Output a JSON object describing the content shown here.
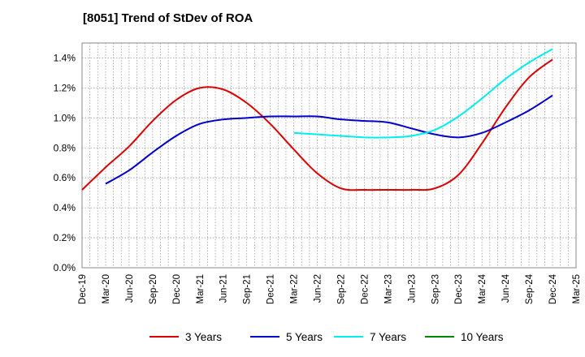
{
  "title": "[8051]  Trend of StDev of ROA",
  "chart_data": {
    "type": "line",
    "title": "[8051]  Trend of StDev of ROA",
    "xlabel": "",
    "ylabel": "",
    "x_ticks": [
      "Dec-19",
      "Mar-20",
      "Jun-20",
      "Sep-20",
      "Dec-20",
      "Mar-21",
      "Jun-21",
      "Sep-21",
      "Dec-21",
      "Mar-22",
      "Jun-22",
      "Sep-22",
      "Dec-22",
      "Mar-23",
      "Jun-23",
      "Sep-23",
      "Dec-23",
      "Mar-24",
      "Jun-24",
      "Sep-24",
      "Dec-24",
      "Mar-25"
    ],
    "y_ticks": [
      "0.0%",
      "0.2%",
      "0.4%",
      "0.6%",
      "0.8%",
      "1.0%",
      "1.2%",
      "1.4%"
    ],
    "ylim": [
      0,
      1.5
    ],
    "grid": true,
    "legend_position": "bottom",
    "series": [
      {
        "name": "3 Years",
        "color": "#dd0000",
        "x": [
          "Dec-19",
          "Mar-20",
          "Jun-20",
          "Sep-20",
          "Dec-20",
          "Mar-21",
          "Jun-21",
          "Sep-21",
          "Dec-21",
          "Mar-22",
          "Jun-22",
          "Sep-22",
          "Dec-22",
          "Mar-23",
          "Jun-23",
          "Sep-23",
          "Dec-23",
          "Mar-24",
          "Jun-24",
          "Sep-24",
          "Dec-24"
        ],
        "values": [
          0.52,
          0.67,
          0.81,
          0.98,
          1.12,
          1.2,
          1.19,
          1.1,
          0.96,
          0.79,
          0.63,
          0.53,
          0.52,
          0.52,
          0.52,
          0.53,
          0.62,
          0.83,
          1.07,
          1.27,
          1.39
        ]
      },
      {
        "name": "5 Years",
        "color": "#0000cc",
        "x": [
          "Mar-20",
          "Jun-20",
          "Sep-20",
          "Dec-20",
          "Mar-21",
          "Jun-21",
          "Sep-21",
          "Dec-21",
          "Mar-22",
          "Jun-22",
          "Sep-22",
          "Dec-22",
          "Mar-23",
          "Jun-23",
          "Sep-23",
          "Dec-23",
          "Mar-24",
          "Jun-24",
          "Sep-24",
          "Dec-24"
        ],
        "values": [
          0.56,
          0.65,
          0.77,
          0.88,
          0.96,
          0.99,
          1.0,
          1.01,
          1.01,
          1.01,
          0.99,
          0.98,
          0.97,
          0.93,
          0.89,
          0.87,
          0.9,
          0.97,
          1.05,
          1.15
        ]
      },
      {
        "name": "7 Years",
        "color": "#00eeee",
        "x": [
          "Mar-22",
          "Jun-22",
          "Sep-22",
          "Dec-22",
          "Mar-23",
          "Jun-23",
          "Sep-23",
          "Dec-23",
          "Mar-24",
          "Jun-24",
          "Sep-24",
          "Dec-24"
        ],
        "values": [
          0.9,
          0.89,
          0.88,
          0.87,
          0.87,
          0.88,
          0.92,
          1.01,
          1.13,
          1.26,
          1.37,
          1.46
        ]
      },
      {
        "name": "10 Years",
        "color": "#008800",
        "x": [],
        "values": []
      }
    ]
  }
}
